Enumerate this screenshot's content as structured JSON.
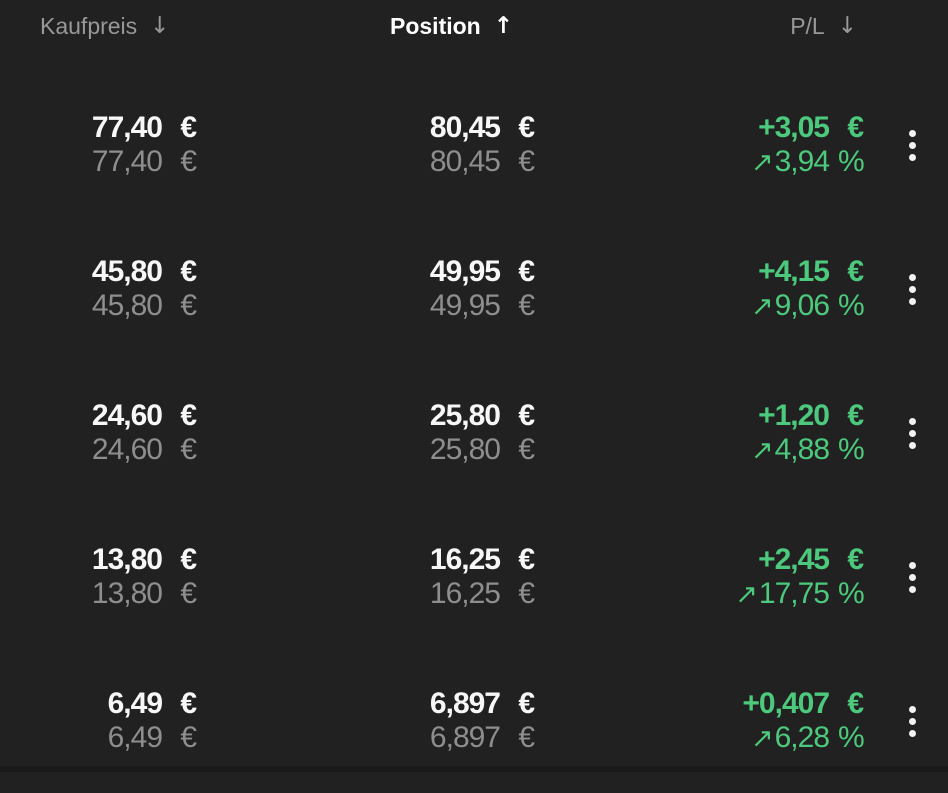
{
  "colors": {
    "background": "#212121",
    "positive_green": "#4cc97c",
    "text_primary": "#f7f7f7",
    "text_secondary": "#8e8e8e",
    "header_text": "#98989a"
  },
  "header": {
    "columns": [
      {
        "label": "Kaufpreis",
        "sort_icon": "↓",
        "sorted": false
      },
      {
        "label": "Position",
        "sort_icon": "↑",
        "sorted": true
      },
      {
        "label": "P/L",
        "sort_icon": "↓",
        "sorted": false
      }
    ]
  },
  "rows": [
    {
      "kaufpreis": {
        "main": "77,40",
        "sub": "77,40",
        "currency": "€"
      },
      "position": {
        "main": "80,45",
        "sub": "80,45",
        "currency": "€"
      },
      "pl": {
        "amount": "+3,05",
        "amount_unit": "€",
        "trend_icon": "↗",
        "percent": "3,94",
        "percent_unit": "%"
      }
    },
    {
      "kaufpreis": {
        "main": "45,80",
        "sub": "45,80",
        "currency": "€"
      },
      "position": {
        "main": "49,95",
        "sub": "49,95",
        "currency": "€"
      },
      "pl": {
        "amount": "+4,15",
        "amount_unit": "€",
        "trend_icon": "↗",
        "percent": "9,06",
        "percent_unit": "%"
      }
    },
    {
      "kaufpreis": {
        "main": "24,60",
        "sub": "24,60",
        "currency": "€"
      },
      "position": {
        "main": "25,80",
        "sub": "25,80",
        "currency": "€"
      },
      "pl": {
        "amount": "+1,20",
        "amount_unit": "€",
        "trend_icon": "↗",
        "percent": "4,88",
        "percent_unit": "%"
      }
    },
    {
      "kaufpreis": {
        "main": "13,80",
        "sub": "13,80",
        "currency": "€"
      },
      "position": {
        "main": "16,25",
        "sub": "16,25",
        "currency": "€"
      },
      "pl": {
        "amount": "+2,45",
        "amount_unit": "€",
        "trend_icon": "↗",
        "percent": "17,75",
        "percent_unit": "%"
      }
    },
    {
      "kaufpreis": {
        "main": "6,49",
        "sub": "6,49",
        "currency": "€"
      },
      "position": {
        "main": "6,897",
        "sub": "6,897",
        "currency": "€"
      },
      "pl": {
        "amount": "+0,407",
        "amount_unit": "€",
        "trend_icon": "↗",
        "percent": "6,28",
        "percent_unit": "%"
      }
    }
  ]
}
